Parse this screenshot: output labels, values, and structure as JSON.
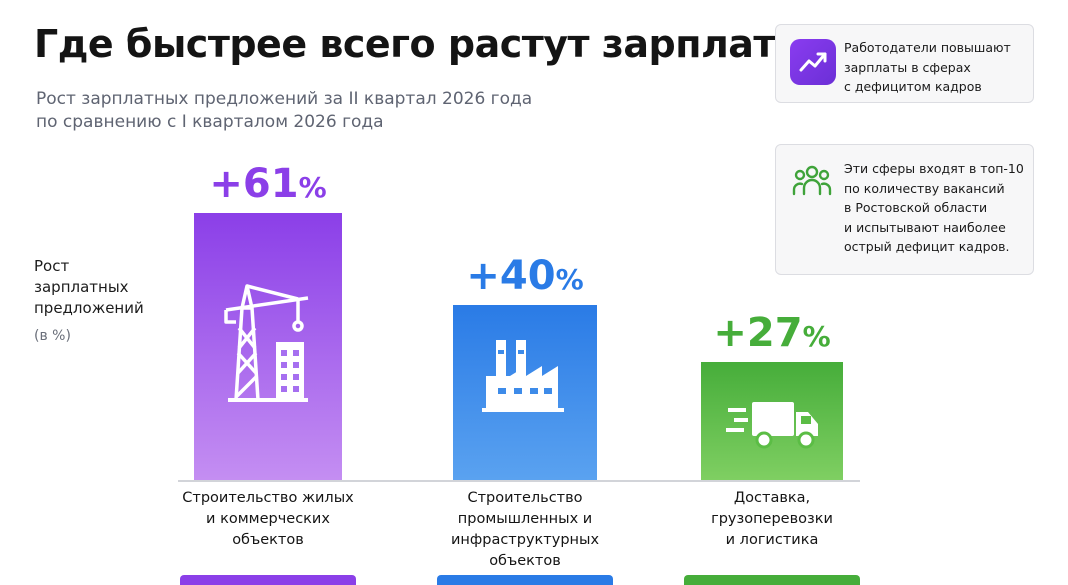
{
  "chart_data": {
    "type": "bar",
    "title": "Где быстрее всего растут зарплаты",
    "subtitle": [
      "Рост зарплатных предложений за II квартал 2026 года",
      "по сравнению с I кварталом 2026 года"
    ],
    "ylabel": [
      "Рост",
      "зарплатных",
      "предложений"
    ],
    "yunit": "(в %)",
    "categories": [
      [
        "Строительство жилых",
        "и коммерческих",
        "объектов"
      ],
      [
        "Строительство",
        "промышленных и",
        "инфраструктурных",
        "объектов"
      ],
      [
        "Доставка,",
        "грузоперевозки",
        "и логистика"
      ]
    ],
    "values": [
      61,
      40,
      27
    ],
    "value_labels": [
      {
        "num": "+61",
        "pct": "%"
      },
      {
        "num": "+40",
        "pct": "%"
      },
      {
        "num": "+27",
        "pct": "%"
      }
    ],
    "colors": [
      "#8b3fe8",
      "#2a7be6",
      "#46ad3a"
    ],
    "colors_light": [
      "#c48ef2",
      "#5aa2f0",
      "#7fcf62"
    ],
    "icons": [
      "crane-building-icon",
      "factory-icon",
      "delivery-truck-icon"
    ],
    "ylim": [
      0,
      61
    ],
    "grid": false,
    "legend": "none"
  },
  "notes": {
    "card1": {
      "icon": "trend-up-icon",
      "lines": [
        "Работодатели повышают",
        "зарплаты в сферах",
        "с дефицитом кадров"
      ]
    },
    "card2": {
      "icon": "people-group-icon",
      "lines": [
        "Эти сферы входят в топ-10",
        "по количеству вакансий",
        "в Ростовской области",
        "и испытывают наиболее",
        "острый дефицит кадров."
      ]
    }
  }
}
